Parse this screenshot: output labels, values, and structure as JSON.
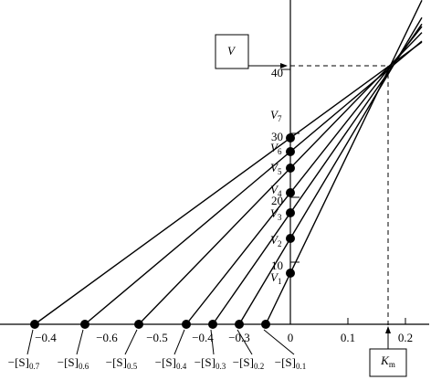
{
  "y_axis": {
    "ticks": [
      "10",
      "20",
      "30",
      "40"
    ]
  },
  "x_axis": {
    "ticks": [
      "−0.4",
      "−0.6",
      "−0.5",
      "−0.4",
      "−0.3",
      "0",
      "0.1",
      "0.2"
    ]
  },
  "v_box": "V",
  "km_box": {
    "main": "K",
    "sub": "m"
  },
  "v_labels": [
    {
      "main": "V",
      "sub": "1"
    },
    {
      "main": "V",
      "sub": "2"
    },
    {
      "main": "V",
      "sub": "3"
    },
    {
      "main": "V",
      "sub": "4"
    },
    {
      "main": "V",
      "sub": "5"
    },
    {
      "main": "V",
      "sub": "6"
    },
    {
      "main": "V",
      "sub": "7"
    }
  ],
  "s_labels": [
    {
      "main": "−[S]",
      "sub": "0.1"
    },
    {
      "main": "−[S]",
      "sub": "0.2"
    },
    {
      "main": "−[S]",
      "sub": "0.3"
    },
    {
      "main": "−[S]",
      "sub": "0.4"
    },
    {
      "main": "−[S]",
      "sub": "0.5"
    },
    {
      "main": "−[S]",
      "sub": "0.6"
    },
    {
      "main": "−[S]",
      "sub": "0.7"
    }
  ]
}
